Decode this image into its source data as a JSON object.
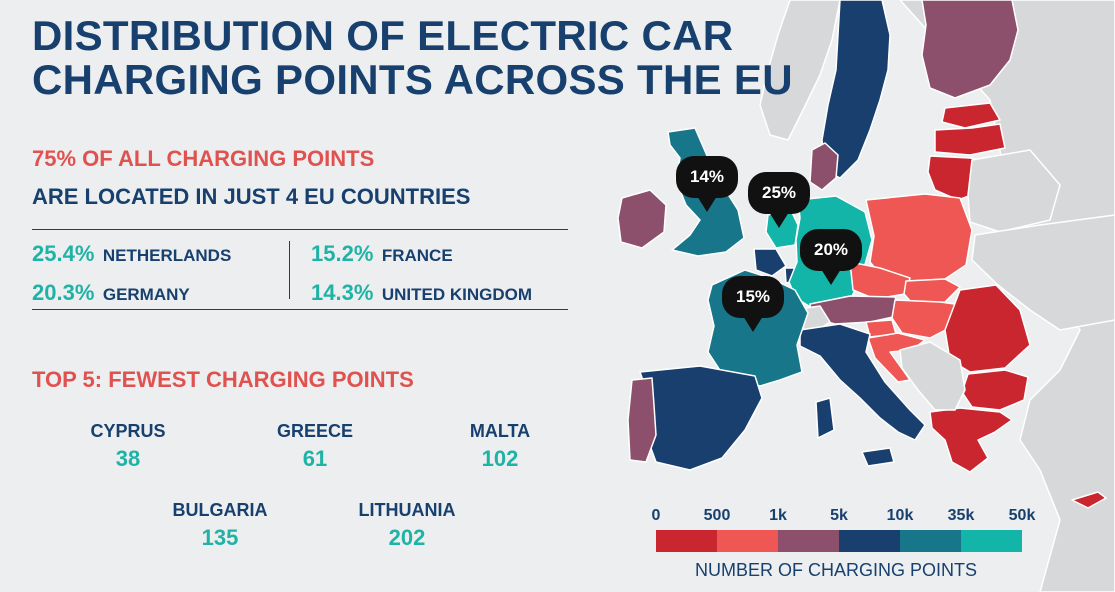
{
  "title": {
    "line1": "DISTRIBUTION OF ELECTRIC CAR",
    "line2": "CHARGING POINTS ACROSS THE EU"
  },
  "headline": {
    "line1": "75% OF ALL CHARGING POINTS",
    "line2": "ARE LOCATED IN JUST 4 EU COUNTRIES"
  },
  "top_countries": [
    {
      "pct": "25.4%",
      "country": "NETHERLANDS"
    },
    {
      "pct": "20.3%",
      "country": "GERMANY"
    },
    {
      "pct": "15.2%",
      "country": "FRANCE"
    },
    {
      "pct": "14.3%",
      "country": "UNITED KINGDOM"
    }
  ],
  "fewest": {
    "title": "TOP 5: FEWEST CHARGING POINTS",
    "items": [
      {
        "country": "CYPRUS",
        "value": "38"
      },
      {
        "country": "GREECE",
        "value": "61"
      },
      {
        "country": "MALTA",
        "value": "102"
      },
      {
        "country": "BULGARIA",
        "value": "135"
      },
      {
        "country": "LITHUANIA",
        "value": "202"
      }
    ]
  },
  "map_bubbles": [
    {
      "country": "United Kingdom",
      "label": "14%"
    },
    {
      "country": "Netherlands",
      "label": "25%"
    },
    {
      "country": "Germany",
      "label": "20%"
    },
    {
      "country": "France",
      "label": "15%"
    }
  ],
  "legend": {
    "ticks": [
      "0",
      "500",
      "1k",
      "5k",
      "10k",
      "35k",
      "50k"
    ],
    "colors": [
      "#c9262f",
      "#ee5754",
      "#8c4f6c",
      "#183f6d",
      "#17768a",
      "#12b5a7"
    ],
    "label": "NUMBER OF CHARGING POINTS"
  },
  "colors": {
    "background": "#eceeef",
    "non_eu_land": "#d7d8d9",
    "title_navy": "#18406e",
    "accent_red": "#e0524f",
    "accent_teal": "#1fb3a6"
  },
  "map_countries": [
    {
      "name": "Norway",
      "tier": "none"
    },
    {
      "name": "Sweden",
      "tier": "5k-10k"
    },
    {
      "name": "Finland",
      "tier": "1k-5k"
    },
    {
      "name": "Estonia",
      "tier": "0-500"
    },
    {
      "name": "Latvia",
      "tier": "0-500"
    },
    {
      "name": "Lithuania",
      "tier": "0-500"
    },
    {
      "name": "Denmark",
      "tier": "1k-5k"
    },
    {
      "name": "Ireland",
      "tier": "1k-5k"
    },
    {
      "name": "United Kingdom",
      "tier": "10k-35k"
    },
    {
      "name": "Netherlands",
      "tier": "35k-50k"
    },
    {
      "name": "Belgium",
      "tier": "5k-10k"
    },
    {
      "name": "Germany",
      "tier": "35k-50k"
    },
    {
      "name": "Poland",
      "tier": "500-1k"
    },
    {
      "name": "Czechia",
      "tier": "500-1k"
    },
    {
      "name": "Slovakia",
      "tier": "500-1k"
    },
    {
      "name": "Austria",
      "tier": "1k-5k"
    },
    {
      "name": "Hungary",
      "tier": "500-1k"
    },
    {
      "name": "Slovenia",
      "tier": "500-1k"
    },
    {
      "name": "Croatia",
      "tier": "500-1k"
    },
    {
      "name": "Romania",
      "tier": "0-500"
    },
    {
      "name": "Bulgaria",
      "tier": "0-500"
    },
    {
      "name": "Greece",
      "tier": "0-500"
    },
    {
      "name": "Cyprus",
      "tier": "0-500"
    },
    {
      "name": "Italy",
      "tier": "5k-10k"
    },
    {
      "name": "France",
      "tier": "10k-35k"
    },
    {
      "name": "Luxembourg",
      "tier": "5k-10k"
    },
    {
      "name": "Spain",
      "tier": "5k-10k"
    },
    {
      "name": "Portugal",
      "tier": "1k-5k"
    },
    {
      "name": "Switzerland",
      "tier": "none"
    },
    {
      "name": "Belarus",
      "tier": "none"
    },
    {
      "name": "Ukraine",
      "tier": "none"
    },
    {
      "name": "Balkans",
      "tier": "none"
    }
  ]
}
